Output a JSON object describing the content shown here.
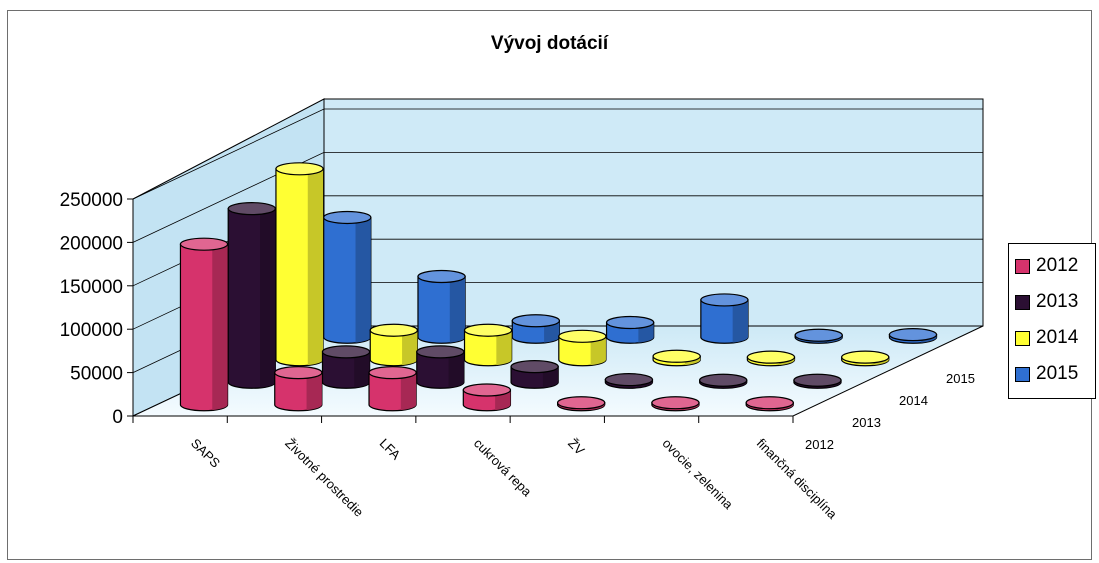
{
  "chart_data": {
    "type": "bar",
    "variant": "3d-column",
    "title": "Vývoj dotácií",
    "categories": [
      "SAPS",
      "Životné prostredie",
      "LFA",
      "cukrová repa",
      "ŽV",
      "ovocie, zelenina",
      "finančná disciplína"
    ],
    "series": [
      {
        "name": "2012",
        "color": "#d6336c",
        "values": [
          185000,
          37000,
          37000,
          17000,
          2000,
          0,
          0
        ]
      },
      {
        "name": "2013",
        "color": "#2b0f33",
        "values": [
          200000,
          35000,
          35000,
          18000,
          3000,
          0,
          0
        ]
      },
      {
        "name": "2014",
        "color": "#ffff33",
        "values": [
          220000,
          34000,
          34000,
          27000,
          4000,
          3000,
          3000
        ]
      },
      {
        "name": "2015",
        "color": "#2f6fd1",
        "values": [
          138000,
          70000,
          19000,
          17000,
          43000,
          0,
          3000
        ]
      }
    ],
    "ylim": [
      0,
      250000
    ],
    "yticks": [
      "250000",
      "200000",
      "150000",
      "100000",
      "50000",
      "0"
    ],
    "depth_labels": [
      "2012",
      "2013",
      "2014",
      "2015"
    ],
    "grid": true,
    "legend": "right"
  }
}
